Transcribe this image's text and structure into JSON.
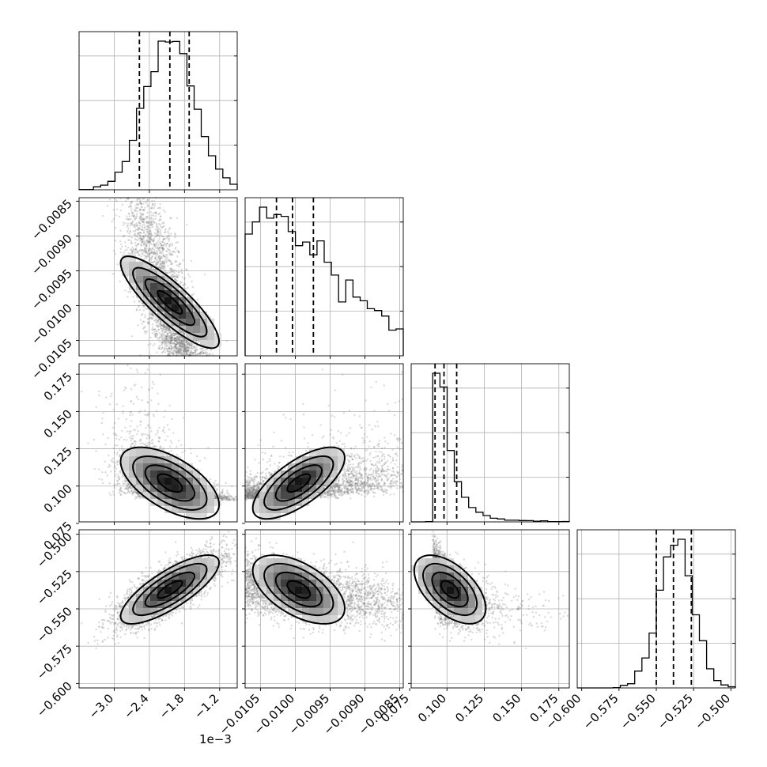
{
  "chart_data": {
    "type": "corner",
    "title": "",
    "grid": true,
    "parameters": [
      {
        "xlabel": "",
        "range": [
          -0.0036,
          -0.0009
        ],
        "ticks": [
          -0.003,
          -0.0024,
          -0.0018,
          -0.0012
        ],
        "tick_labels": [
          "−3.0",
          "−2.4",
          "−1.8",
          "−1.2"
        ],
        "offset_text": "1e−3",
        "mean": -0.00205,
        "sd": 0.00042,
        "skew": 0,
        "quantiles": [
          -0.00257,
          -0.00205,
          -0.00172
        ]
      },
      {
        "xlabel": "",
        "range": [
          -0.01072,
          -0.00845
        ],
        "ticks": [
          -0.0105,
          -0.01,
          -0.0095,
          -0.009,
          -0.0085
        ],
        "tick_labels": [
          "−0.0105",
          "−0.0100",
          "−0.0095",
          "−0.0090",
          "−0.0085"
        ],
        "mean": -0.00995,
        "sd": 0.00033,
        "skew": 0.35,
        "quantiles": [
          -0.01027,
          -0.01004,
          -0.00974
        ]
      },
      {
        "xlabel": "",
        "range": [
          0.076,
          0.182
        ],
        "ticks": [
          0.075,
          0.1,
          0.125,
          0.15,
          0.175
        ],
        "tick_labels": [
          "0.075",
          "0.100",
          "0.125",
          "0.150",
          "0.175"
        ],
        "mean": 0.102,
        "sd": 0.012,
        "skew": 0.9,
        "quantiles": [
          0.092,
          0.098,
          0.1065
        ]
      },
      {
        "xlabel": "",
        "range": [
          -0.603,
          -0.497
        ],
        "ticks": [
          -0.6,
          -0.575,
          -0.55,
          -0.525,
          -0.5
        ],
        "tick_labels": [
          "−0.600",
          "−0.575",
          "−0.550",
          "−0.525",
          "−0.500"
        ],
        "mean": -0.537,
        "sd": 0.0115,
        "skew": 0,
        "quantiles": [
          -0.55,
          -0.5385,
          -0.5265
        ]
      }
    ],
    "correlations": [
      [
        1,
        -0.85,
        -0.6,
        0.78
      ],
      [
        -0.85,
        1,
        0.7,
        -0.55
      ],
      [
        -0.6,
        0.7,
        1,
        -0.55
      ],
      [
        0.78,
        -0.55,
        -0.55,
        1
      ]
    ],
    "contour_levels": [
      0.5,
      1.0,
      1.5,
      2.0
    ]
  }
}
